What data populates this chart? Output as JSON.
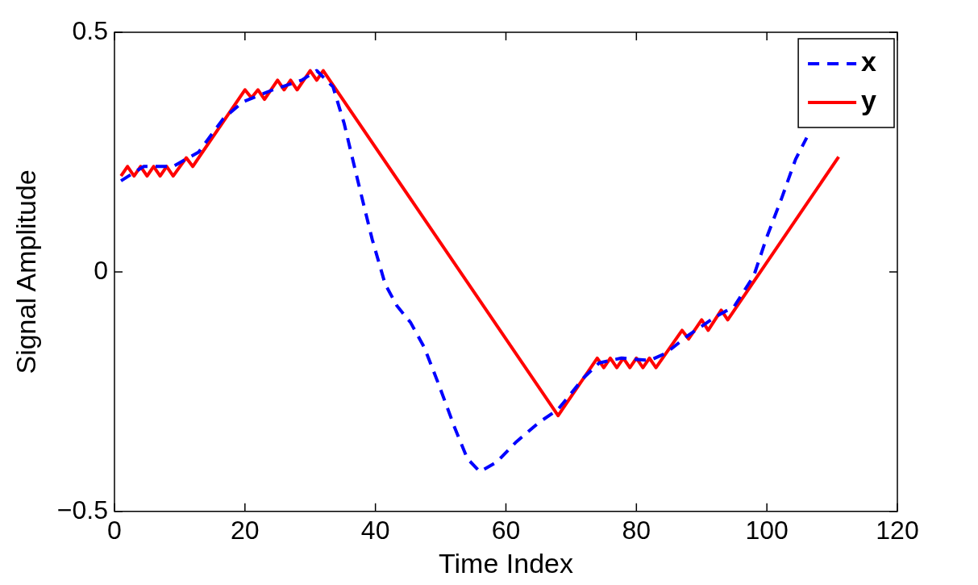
{
  "chart_data": {
    "type": "line",
    "xlabel": "Time Index",
    "ylabel": "Signal Amplitude",
    "xlim": [
      0,
      120
    ],
    "ylim": [
      -0.5,
      0.5
    ],
    "xticks": [
      0,
      20,
      40,
      60,
      80,
      100,
      120
    ],
    "yticks": [
      {
        "value": -0.5,
        "label": "−0.5"
      },
      0,
      0.5
    ],
    "grid": false,
    "legend": "top right",
    "marker": "none",
    "series": [
      {
        "name": "x",
        "color": "#0000ff",
        "line_style": "dashed",
        "x": [
          1,
          4.5,
          9,
          12.9,
          16.7,
          19.7,
          24.3,
          28.7,
          31,
          33.5,
          35.2,
          37.3,
          39.5,
          41.5,
          43.3,
          45.4,
          47.5,
          49.7,
          52.2,
          54.1,
          56,
          58.6,
          61.5,
          65,
          68,
          72,
          74.3,
          77.7,
          82,
          84.5,
          87.9,
          92,
          95,
          98,
          100,
          102.3,
          104.4,
          106.1
        ],
        "values": [
          0.19,
          0.22,
          0.22,
          0.25,
          0.32,
          0.355,
          0.38,
          0.4,
          0.42,
          0.386,
          0.31,
          0.19,
          0.068,
          -0.026,
          -0.071,
          -0.106,
          -0.158,
          -0.235,
          -0.327,
          -0.39,
          -0.417,
          -0.397,
          -0.356,
          -0.315,
          -0.287,
          -0.22,
          -0.19,
          -0.18,
          -0.185,
          -0.17,
          -0.133,
          -0.095,
          -0.072,
          -0.008,
          0.073,
          0.155,
          0.235,
          0.28
        ]
      },
      {
        "name": "y",
        "color": "#ff0000",
        "line_style": "solid",
        "x": [
          1,
          2,
          3,
          4,
          5,
          6,
          7,
          8,
          9,
          11,
          12,
          20,
          21,
          22,
          23,
          25,
          26,
          27,
          28,
          30,
          31,
          32,
          68,
          74,
          75,
          76,
          77,
          78,
          79,
          80,
          81,
          82,
          83,
          87,
          88,
          90,
          91,
          93,
          94,
          111
        ],
        "values": [
          0.2,
          0.22,
          0.2,
          0.22,
          0.2,
          0.22,
          0.2,
          0.22,
          0.2,
          0.238,
          0.22,
          0.38,
          0.363,
          0.38,
          0.36,
          0.4,
          0.38,
          0.4,
          0.38,
          0.42,
          0.4,
          0.42,
          -0.3,
          -0.18,
          -0.2,
          -0.18,
          -0.2,
          -0.18,
          -0.2,
          -0.18,
          -0.2,
          -0.18,
          -0.2,
          -0.122,
          -0.14,
          -0.1,
          -0.122,
          -0.08,
          -0.1,
          0.24
        ]
      }
    ]
  }
}
